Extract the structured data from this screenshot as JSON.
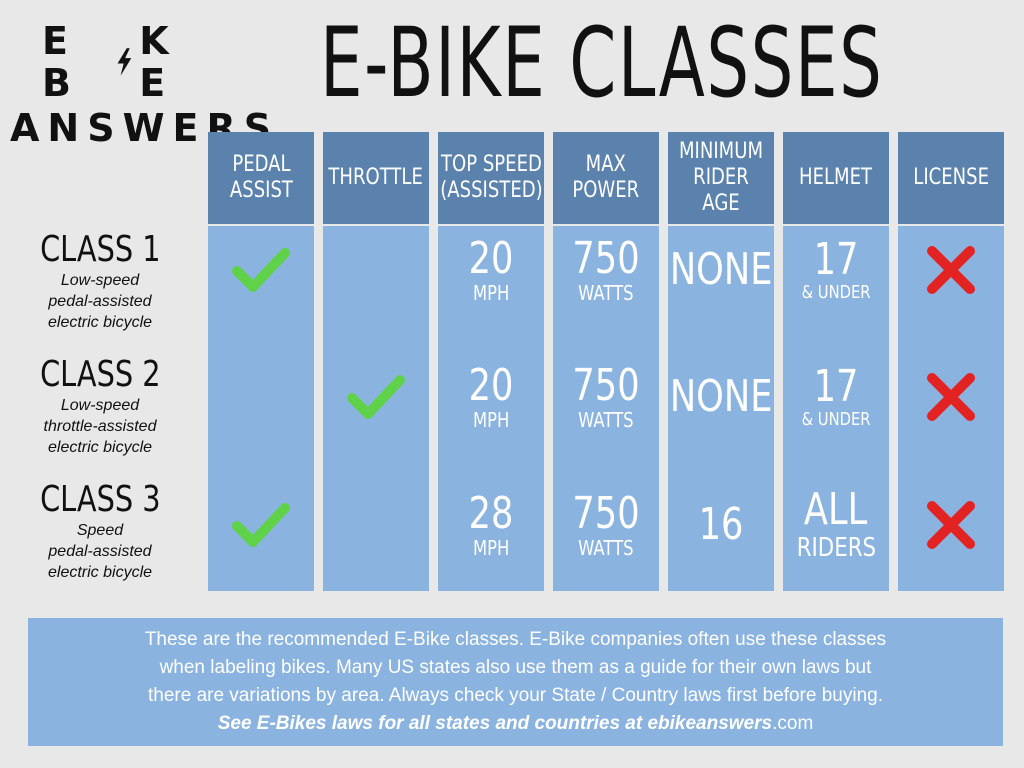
{
  "logo": {
    "line1_left": "E B",
    "line1_right": "K E",
    "line2": "ANSWERS",
    "bolt_icon": "lightning-bolt-icon"
  },
  "title": "E-BIKE CLASSES",
  "columns": [
    {
      "key": "pedal_assist",
      "line1": "PEDAL",
      "line2": "ASSIST"
    },
    {
      "key": "throttle",
      "line1": "THROTTLE",
      "line2": ""
    },
    {
      "key": "top_speed",
      "line1": "TOP SPEED",
      "line2": "(ASSISTED)"
    },
    {
      "key": "max_power",
      "line1": "MAX",
      "line2": "POWER"
    },
    {
      "key": "min_age",
      "line1": "MINIMUM",
      "line2": "RIDER AGE"
    },
    {
      "key": "helmet",
      "line1": "HELMET",
      "line2": ""
    },
    {
      "key": "license",
      "line1": "LICENSE",
      "line2": ""
    }
  ],
  "rows": [
    {
      "class": "CLASS 1",
      "desc": [
        "Low-speed",
        "pedal-assisted",
        "electric bicycle"
      ],
      "pedal_assist": "check-icon",
      "throttle": "",
      "top_speed": {
        "value": "20",
        "unit": "MPH"
      },
      "max_power": {
        "value": "750",
        "unit": "WATTS"
      },
      "min_age": {
        "value": "NONE",
        "unit": ""
      },
      "helmet": {
        "value": "17",
        "unit": "& UNDER"
      },
      "license": "cross-icon"
    },
    {
      "class": "CLASS 2",
      "desc": [
        "Low-speed",
        "throttle-assisted",
        "electric bicycle"
      ],
      "pedal_assist": "",
      "throttle": "check-icon",
      "top_speed": {
        "value": "20",
        "unit": "MPH"
      },
      "max_power": {
        "value": "750",
        "unit": "WATTS"
      },
      "min_age": {
        "value": "NONE",
        "unit": ""
      },
      "helmet": {
        "value": "17",
        "unit": "& UNDER"
      },
      "license": "cross-icon"
    },
    {
      "class": "CLASS 3",
      "desc": [
        "Speed",
        "pedal-assisted",
        "electric bicycle"
      ],
      "pedal_assist": "check-icon",
      "throttle": "",
      "top_speed": {
        "value": "28",
        "unit": "MPH"
      },
      "max_power": {
        "value": "750",
        "unit": "WATTS"
      },
      "min_age": {
        "value": "16",
        "unit": ""
      },
      "helmet": {
        "value": "ALL",
        "unit": "RIDERS"
      },
      "license": "cross-icon"
    }
  ],
  "footer": {
    "line1": "These are the recommended E-Bike classes. E-Bike companies often use these classes",
    "line2": "when labeling bikes. Many US states also use them as a guide for their own laws but",
    "line3": "there are variations by area. Always check your State / Country laws first before buying.",
    "link_text": "See E-Bikes laws for all states and countries at ebikeanswers",
    "link_domain": ".com"
  },
  "colors": {
    "background": "#e8e8e8",
    "header": "#5a82ad",
    "body": "#8ab3e0",
    "check": "#5fd24a",
    "cross": "#e32222"
  }
}
